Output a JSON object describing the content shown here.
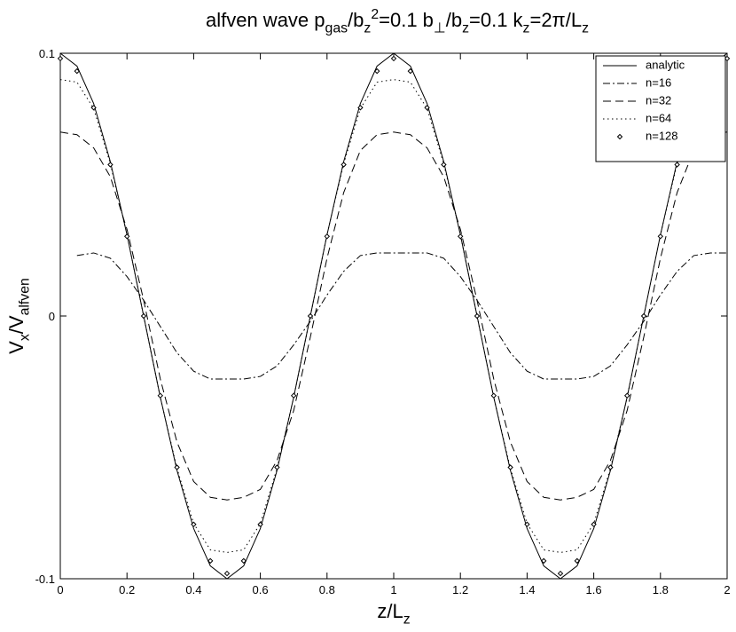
{
  "chart_data": {
    "type": "line",
    "title": [
      {
        "text": "alfven wave p"
      },
      {
        "text": "gas",
        "shift": "sub"
      },
      {
        "text": "/b"
      },
      {
        "text": "z",
        "shift": "sub"
      },
      {
        "text": "2",
        "shift": "super"
      },
      {
        "text": "=0.1  b"
      },
      {
        "text": "⊥",
        "shift": "sub"
      },
      {
        "text": "/b"
      },
      {
        "text": "z",
        "shift": "sub"
      },
      {
        "text": "=0.1  k"
      },
      {
        "text": "z",
        "shift": "sub"
      },
      {
        "text": "=2π/L"
      },
      {
        "text": "z",
        "shift": "sub"
      }
    ],
    "x_label": [
      {
        "text": "z/L"
      },
      {
        "text": "z",
        "shift": "sub"
      }
    ],
    "y_label": [
      {
        "text": "V"
      },
      {
        "text": "x",
        "shift": "sub"
      },
      {
        "text": "/V"
      },
      {
        "text": "alfven",
        "shift": "sub"
      }
    ],
    "x": [
      0,
      0.05,
      0.1,
      0.15,
      0.2,
      0.25,
      0.3,
      0.35,
      0.4,
      0.45,
      0.5,
      0.55,
      0.6,
      0.65,
      0.7,
      0.75,
      0.8,
      0.85,
      0.9,
      0.95,
      1,
      1.05,
      1.1,
      1.15,
      1.2,
      1.25,
      1.3,
      1.35,
      1.4,
      1.45,
      1.5,
      1.55,
      1.6,
      1.65,
      1.7,
      1.75,
      1.8,
      1.85,
      1.9,
      1.95,
      2
    ],
    "series": [
      {
        "name": "analytic",
        "color": "#000000",
        "style": "solid",
        "values": [
          0.1,
          0.0951,
          0.0809,
          0.0588,
          0.0309,
          0,
          -0.0309,
          -0.0588,
          -0.0809,
          -0.0951,
          -0.1,
          -0.0951,
          -0.0809,
          -0.0588,
          -0.0309,
          0,
          0.0309,
          0.0588,
          0.0809,
          0.0951,
          0.1,
          0.0951,
          0.0809,
          0.0588,
          0.0309,
          0,
          -0.0309,
          -0.0588,
          -0.0809,
          -0.0951,
          -0.1,
          -0.0951,
          -0.0809,
          -0.0588,
          -0.0309,
          0,
          0.0309,
          0.0588,
          0.0809,
          0.0951,
          0.1
        ]
      },
      {
        "name": "n=16",
        "color": "#000000",
        "style": "dashdot",
        "values": [
          null,
          0.023,
          0.024,
          0.022,
          0.015,
          0.006,
          -0.004,
          -0.014,
          -0.021,
          -0.024,
          -0.024,
          -0.024,
          -0.023,
          -0.019,
          -0.011,
          -0.002,
          0.008,
          0.017,
          0.023,
          0.024,
          0.024,
          0.024,
          0.024,
          0.022,
          0.015,
          0.006,
          -0.004,
          -0.014,
          -0.021,
          -0.024,
          -0.024,
          -0.024,
          -0.023,
          -0.019,
          -0.011,
          -0.002,
          0.008,
          0.017,
          0.023,
          0.024,
          0.024
        ]
      },
      {
        "name": "n=32",
        "color": "#000000",
        "style": "dash",
        "values": [
          0.07,
          0.069,
          0.064,
          0.053,
          0.033,
          0.006,
          -0.024,
          -0.048,
          -0.063,
          -0.069,
          -0.07,
          -0.069,
          -0.066,
          -0.055,
          -0.036,
          -0.008,
          0.022,
          0.047,
          0.063,
          0.069,
          0.07,
          0.069,
          0.064,
          0.053,
          0.033,
          0.006,
          -0.024,
          -0.048,
          -0.063,
          -0.069,
          -0.07,
          -0.069,
          -0.066,
          -0.055,
          -0.036,
          -0.008,
          0.022,
          0.047,
          0.063,
          0.069,
          0.07
        ]
      },
      {
        "name": "n=64",
        "color": "#000000",
        "style": "dot",
        "values": [
          0.09,
          0.089,
          0.079,
          0.058,
          0.031,
          0,
          -0.031,
          -0.058,
          -0.079,
          -0.089,
          -0.09,
          -0.089,
          -0.079,
          -0.058,
          -0.031,
          0,
          0.031,
          0.058,
          0.079,
          0.089,
          0.09,
          0.089,
          0.079,
          0.058,
          0.031,
          0,
          -0.031,
          -0.058,
          -0.079,
          -0.089,
          -0.09,
          -0.089,
          -0.079,
          -0.058,
          -0.031,
          0,
          0.031,
          0.058,
          0.079,
          0.089,
          0.09
        ]
      },
      {
        "name": "n=128",
        "color": "#000000",
        "style": "marker",
        "values": [
          0.098,
          0.0932,
          0.0793,
          0.0576,
          0.0303,
          0,
          -0.0303,
          -0.0576,
          -0.0793,
          -0.0932,
          -0.098,
          -0.0932,
          -0.0793,
          -0.0576,
          -0.0303,
          0,
          0.0303,
          0.0576,
          0.0793,
          0.0932,
          0.098,
          0.0932,
          0.0793,
          0.0576,
          0.0303,
          0,
          -0.0303,
          -0.0576,
          -0.0793,
          -0.0932,
          -0.098,
          -0.0932,
          -0.0793,
          -0.0576,
          -0.0303,
          0,
          0.0303,
          0.0576,
          0.0793,
          0.0932,
          0.098
        ]
      }
    ],
    "xlim": [
      0,
      2
    ],
    "xticks": [
      0,
      0.2,
      0.4,
      0.6,
      0.8,
      1,
      1.2,
      1.4,
      1.6,
      1.8,
      2
    ],
    "ylim": [
      -0.1,
      0.1
    ],
    "yticks": [
      -0.1,
      0,
      0.1
    ],
    "grid": false,
    "legend": "upper right"
  }
}
